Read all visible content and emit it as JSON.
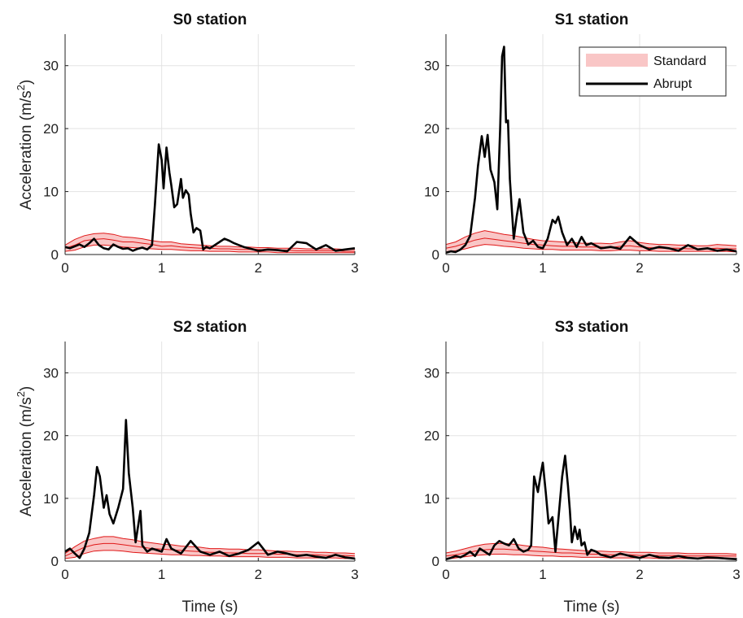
{
  "figure": {
    "xlabel": "Time (s)",
    "ylabel_main": "Acceleration (m/s",
    "ylabel_sup": "2",
    "ylabel_close": ")"
  },
  "legend": {
    "standard": "Standard",
    "abrupt": "Abrupt"
  },
  "colors": {
    "band_fill": "#f9c6c6",
    "band_line": "#e01818",
    "abrupt_line": "#000000",
    "grid": "#e3e3e3",
    "axis": "#222222"
  },
  "chart_data": [
    {
      "type": "line",
      "title": "S0 station",
      "xlim": [
        0,
        3
      ],
      "ylim": [
        0,
        35
      ],
      "xticks": [
        0,
        1,
        2,
        3
      ],
      "yticks": [
        0,
        10,
        20,
        30
      ],
      "grid": true,
      "series": [
        {
          "name": "Standard",
          "kind": "band",
          "x": [
            0,
            0.1,
            0.2,
            0.3,
            0.4,
            0.5,
            0.6,
            0.7,
            0.8,
            0.9,
            1.0,
            1.1,
            1.2,
            1.3,
            1.4,
            1.5,
            1.6,
            1.7,
            1.8,
            1.9,
            2.0,
            2.1,
            2.2,
            2.3,
            2.4,
            2.5,
            2.6,
            2.7,
            2.8,
            2.9,
            3.0
          ],
          "mid": [
            1.0,
            1.5,
            2.2,
            2.4,
            2.5,
            2.3,
            2.0,
            2.0,
            1.8,
            1.6,
            1.3,
            1.4,
            1.2,
            1.1,
            1.0,
            1.0,
            0.9,
            0.9,
            0.8,
            0.8,
            0.8,
            0.7,
            0.7,
            0.7,
            0.6,
            0.6,
            0.6,
            0.6,
            0.6,
            0.5,
            0.5
          ],
          "low": [
            0.5,
            0.7,
            1.2,
            1.5,
            1.5,
            1.4,
            1.2,
            1.1,
            1.0,
            0.9,
            0.8,
            0.8,
            0.7,
            0.6,
            0.6,
            0.5,
            0.5,
            0.5,
            0.4,
            0.4,
            0.4,
            0.4,
            0.3,
            0.3,
            0.3,
            0.3,
            0.3,
            0.3,
            0.3,
            0.3,
            0.3
          ],
          "high": [
            1.5,
            2.4,
            3.0,
            3.3,
            3.4,
            3.2,
            2.8,
            2.7,
            2.5,
            2.2,
            2.0,
            2.0,
            1.7,
            1.6,
            1.5,
            1.4,
            1.3,
            1.3,
            1.2,
            1.2,
            1.1,
            1.1,
            1.0,
            1.0,
            1.0,
            0.9,
            0.9,
            0.9,
            0.9,
            0.8,
            0.8
          ]
        },
        {
          "name": "Abrupt",
          "kind": "line",
          "x": [
            0,
            0.05,
            0.1,
            0.15,
            0.2,
            0.25,
            0.3,
            0.35,
            0.4,
            0.45,
            0.5,
            0.55,
            0.6,
            0.65,
            0.7,
            0.75,
            0.8,
            0.85,
            0.9,
            0.93,
            0.97,
            1.0,
            1.02,
            1.05,
            1.08,
            1.1,
            1.13,
            1.16,
            1.2,
            1.22,
            1.25,
            1.28,
            1.3,
            1.33,
            1.36,
            1.4,
            1.43,
            1.46,
            1.5,
            1.55,
            1.6,
            1.65,
            1.7,
            1.75,
            1.8,
            1.85,
            1.9,
            1.95,
            2.0,
            2.1,
            2.2,
            2.3,
            2.4,
            2.5,
            2.6,
            2.7,
            2.8,
            2.9,
            3.0
          ],
          "y": [
            1.2,
            1.0,
            1.3,
            1.6,
            1.2,
            1.8,
            2.5,
            1.5,
            1.0,
            0.8,
            1.6,
            1.2,
            0.9,
            1.0,
            0.6,
            0.9,
            1.1,
            0.8,
            1.5,
            8,
            17.5,
            15,
            10.5,
            17,
            13,
            11,
            7.5,
            8,
            12,
            9,
            10.2,
            9.5,
            6.5,
            3.5,
            4.2,
            3.8,
            0.8,
            1.2,
            1.0,
            1.5,
            2.0,
            2.5,
            2.2,
            1.8,
            1.5,
            1.2,
            1.0,
            0.8,
            0.6,
            0.8,
            0.7,
            0.5,
            2.0,
            1.8,
            0.8,
            1.5,
            0.6,
            0.8,
            1.0
          ]
        }
      ]
    },
    {
      "type": "line",
      "title": "S1 station",
      "xlim": [
        0,
        3
      ],
      "ylim": [
        0,
        35
      ],
      "xticks": [
        0,
        1,
        2,
        3
      ],
      "yticks": [
        0,
        10,
        20,
        30
      ],
      "grid": true,
      "series": [
        {
          "name": "Standard",
          "kind": "band",
          "x": [
            0,
            0.1,
            0.2,
            0.3,
            0.4,
            0.5,
            0.6,
            0.7,
            0.8,
            0.9,
            1.0,
            1.1,
            1.2,
            1.3,
            1.4,
            1.5,
            1.6,
            1.7,
            1.8,
            1.9,
            2.0,
            2.1,
            2.2,
            2.3,
            2.4,
            2.5,
            2.6,
            2.7,
            2.8,
            2.9,
            3.0
          ],
          "mid": [
            1.0,
            1.3,
            1.8,
            2.3,
            2.6,
            2.4,
            2.2,
            2.0,
            1.8,
            1.6,
            1.5,
            1.4,
            1.3,
            1.3,
            1.2,
            1.2,
            1.2,
            1.1,
            1.3,
            1.4,
            1.2,
            1.1,
            1.0,
            1.0,
            1.0,
            0.9,
            0.9,
            0.9,
            1.0,
            0.9,
            0.9
          ],
          "low": [
            0.4,
            0.6,
            0.9,
            1.3,
            1.6,
            1.5,
            1.3,
            1.2,
            1.0,
            0.9,
            0.8,
            0.8,
            0.7,
            0.7,
            0.7,
            0.7,
            0.6,
            0.6,
            0.7,
            0.7,
            0.6,
            0.6,
            0.5,
            0.5,
            0.5,
            0.5,
            0.5,
            0.5,
            0.5,
            0.5,
            0.4
          ],
          "high": [
            1.6,
            2.0,
            2.8,
            3.4,
            3.8,
            3.5,
            3.2,
            3.0,
            2.7,
            2.4,
            2.2,
            2.1,
            2.0,
            1.9,
            1.8,
            1.8,
            1.8,
            1.7,
            2.0,
            2.2,
            1.9,
            1.7,
            1.6,
            1.6,
            1.5,
            1.5,
            1.4,
            1.4,
            1.6,
            1.5,
            1.4
          ]
        },
        {
          "name": "Abrupt",
          "kind": "line",
          "x": [
            0,
            0.05,
            0.1,
            0.15,
            0.2,
            0.25,
            0.3,
            0.33,
            0.37,
            0.4,
            0.43,
            0.46,
            0.5,
            0.53,
            0.56,
            0.58,
            0.6,
            0.62,
            0.64,
            0.66,
            0.7,
            0.73,
            0.76,
            0.8,
            0.85,
            0.9,
            0.95,
            1.0,
            1.05,
            1.1,
            1.13,
            1.16,
            1.2,
            1.25,
            1.3,
            1.35,
            1.4,
            1.45,
            1.5,
            1.6,
            1.7,
            1.8,
            1.9,
            2.0,
            2.1,
            2.2,
            2.3,
            2.4,
            2.5,
            2.6,
            2.7,
            2.8,
            2.9,
            3.0
          ],
          "y": [
            0.3,
            0.5,
            0.4,
            0.8,
            1.5,
            3.0,
            9.0,
            14,
            18.8,
            15.5,
            19.0,
            13.5,
            11.5,
            7.2,
            20,
            31.5,
            33,
            21,
            21.3,
            12,
            2.5,
            6,
            8.8,
            3.5,
            1.6,
            2.2,
            1.2,
            1.0,
            2.5,
            5.5,
            5.0,
            6.0,
            3.5,
            1.5,
            2.5,
            1.2,
            2.8,
            1.5,
            1.8,
            1.0,
            1.2,
            0.9,
            2.8,
            1.5,
            0.8,
            1.2,
            1.0,
            0.6,
            1.5,
            0.8,
            1.0,
            0.6,
            0.8,
            0.5
          ]
        }
      ]
    },
    {
      "type": "line",
      "title": "S2 station",
      "xlim": [
        0,
        3
      ],
      "ylim": [
        0,
        35
      ],
      "xticks": [
        0,
        1,
        2,
        3
      ],
      "yticks": [
        0,
        10,
        20,
        30
      ],
      "grid": true,
      "series": [
        {
          "name": "Standard",
          "kind": "band",
          "x": [
            0,
            0.1,
            0.2,
            0.3,
            0.4,
            0.5,
            0.6,
            0.7,
            0.8,
            0.9,
            1.0,
            1.1,
            1.2,
            1.3,
            1.4,
            1.5,
            1.6,
            1.7,
            1.8,
            1.9,
            2.0,
            2.1,
            2.2,
            2.3,
            2.4,
            2.5,
            2.6,
            2.7,
            2.8,
            2.9,
            3.0
          ],
          "mid": [
            0.8,
            1.5,
            2.2,
            2.6,
            2.8,
            2.8,
            2.6,
            2.4,
            2.2,
            2.0,
            1.9,
            1.8,
            1.7,
            1.6,
            1.5,
            1.4,
            1.4,
            1.3,
            1.3,
            1.2,
            1.2,
            1.2,
            1.1,
            1.1,
            1.0,
            1.0,
            1.0,
            0.9,
            0.9,
            0.9,
            0.8
          ],
          "low": [
            0.4,
            0.6,
            1.2,
            1.6,
            1.7,
            1.7,
            1.6,
            1.4,
            1.3,
            1.2,
            1.1,
            1.0,
            1.0,
            0.9,
            0.9,
            0.8,
            0.8,
            0.7,
            0.7,
            0.7,
            0.7,
            0.6,
            0.6,
            0.6,
            0.5,
            0.5,
            0.5,
            0.5,
            0.5,
            0.4,
            0.4
          ],
          "high": [
            1.2,
            2.3,
            3.2,
            3.6,
            3.9,
            3.9,
            3.6,
            3.4,
            3.1,
            2.9,
            2.7,
            2.6,
            2.4,
            2.3,
            2.2,
            2.0,
            2.0,
            1.9,
            1.9,
            1.8,
            1.8,
            1.7,
            1.6,
            1.6,
            1.5,
            1.5,
            1.4,
            1.4,
            1.3,
            1.3,
            1.2
          ]
        },
        {
          "name": "Abrupt",
          "kind": "line",
          "x": [
            0,
            0.05,
            0.1,
            0.15,
            0.2,
            0.25,
            0.3,
            0.33,
            0.36,
            0.4,
            0.43,
            0.46,
            0.5,
            0.55,
            0.6,
            0.63,
            0.66,
            0.7,
            0.73,
            0.76,
            0.78,
            0.8,
            0.85,
            0.9,
            1.0,
            1.05,
            1.1,
            1.2,
            1.3,
            1.4,
            1.5,
            1.6,
            1.7,
            1.8,
            1.9,
            2.0,
            2.05,
            2.1,
            2.2,
            2.3,
            2.4,
            2.5,
            2.6,
            2.7,
            2.8,
            2.9,
            3.0
          ],
          "y": [
            1.5,
            2.0,
            1.2,
            0.5,
            2.0,
            4.5,
            10.5,
            15,
            13.5,
            8.5,
            10.5,
            7.5,
            6.0,
            8.5,
            11.5,
            22.5,
            14,
            8.5,
            3.0,
            6.0,
            8.0,
            2.5,
            1.5,
            2.0,
            1.5,
            3.5,
            2.0,
            1.2,
            3.2,
            1.5,
            1.0,
            1.5,
            0.8,
            1.2,
            1.8,
            3.0,
            2.0,
            1.0,
            1.5,
            1.2,
            0.8,
            1.0,
            0.7,
            0.5,
            1.0,
            0.6,
            0.4
          ]
        }
      ]
    },
    {
      "type": "line",
      "title": "S3 station",
      "xlim": [
        0,
        3
      ],
      "ylim": [
        0,
        35
      ],
      "xticks": [
        0,
        1,
        2,
        3
      ],
      "yticks": [
        0,
        10,
        20,
        30
      ],
      "grid": true,
      "series": [
        {
          "name": "Standard",
          "kind": "band",
          "x": [
            0,
            0.1,
            0.2,
            0.3,
            0.4,
            0.5,
            0.6,
            0.7,
            0.8,
            0.9,
            1.0,
            1.1,
            1.2,
            1.3,
            1.4,
            1.5,
            1.6,
            1.7,
            1.8,
            1.9,
            2.0,
            2.1,
            2.2,
            2.3,
            2.4,
            2.5,
            2.6,
            2.7,
            2.8,
            2.9,
            3.0
          ],
          "mid": [
            0.8,
            1.0,
            1.3,
            1.6,
            1.8,
            1.9,
            1.9,
            1.8,
            1.7,
            1.6,
            1.5,
            1.4,
            1.3,
            1.3,
            1.2,
            1.1,
            1.1,
            1.0,
            1.0,
            1.0,
            0.9,
            0.9,
            0.9,
            0.9,
            0.9,
            0.8,
            0.8,
            0.8,
            0.8,
            0.8,
            0.8
          ],
          "low": [
            0.3,
            0.5,
            0.7,
            0.9,
            1.0,
            1.1,
            1.1,
            1.0,
            1.0,
            0.9,
            0.8,
            0.8,
            0.7,
            0.7,
            0.6,
            0.6,
            0.6,
            0.5,
            0.5,
            0.5,
            0.5,
            0.5,
            0.4,
            0.4,
            0.4,
            0.4,
            0.4,
            0.4,
            0.4,
            0.4,
            0.4
          ],
          "high": [
            1.3,
            1.6,
            2.0,
            2.4,
            2.7,
            2.8,
            2.8,
            2.7,
            2.5,
            2.3,
            2.2,
            2.0,
            1.9,
            1.8,
            1.7,
            1.6,
            1.6,
            1.5,
            1.5,
            1.4,
            1.4,
            1.4,
            1.3,
            1.3,
            1.3,
            1.2,
            1.2,
            1.2,
            1.2,
            1.2,
            1.1
          ]
        },
        {
          "name": "Abrupt",
          "kind": "line",
          "x": [
            0,
            0.05,
            0.1,
            0.15,
            0.2,
            0.25,
            0.3,
            0.35,
            0.4,
            0.45,
            0.5,
            0.55,
            0.6,
            0.65,
            0.7,
            0.75,
            0.8,
            0.85,
            0.88,
            0.91,
            0.95,
            0.98,
            1.0,
            1.03,
            1.06,
            1.1,
            1.13,
            1.16,
            1.2,
            1.23,
            1.26,
            1.28,
            1.3,
            1.33,
            1.36,
            1.38,
            1.4,
            1.43,
            1.46,
            1.5,
            1.55,
            1.6,
            1.65,
            1.7,
            1.8,
            1.9,
            2.0,
            2.1,
            2.2,
            2.3,
            2.4,
            2.5,
            2.6,
            2.7,
            2.8,
            2.9,
            3.0
          ],
          "y": [
            0.3,
            0.5,
            0.8,
            0.6,
            1.0,
            1.5,
            0.8,
            2.0,
            1.5,
            1.0,
            2.5,
            3.2,
            2.8,
            2.5,
            3.5,
            2.0,
            1.5,
            1.8,
            2.5,
            13.5,
            11.0,
            14,
            15.7,
            11,
            6.0,
            7.0,
            1.5,
            6.5,
            13.5,
            16.8,
            12,
            8.0,
            3.0,
            5.5,
            3.5,
            5.0,
            2.5,
            3.0,
            1.0,
            1.8,
            1.5,
            1.0,
            0.8,
            0.6,
            1.2,
            0.8,
            0.5,
            1.0,
            0.6,
            0.5,
            0.8,
            0.5,
            0.4,
            0.6,
            0.5,
            0.4,
            0.3
          ]
        }
      ]
    }
  ]
}
